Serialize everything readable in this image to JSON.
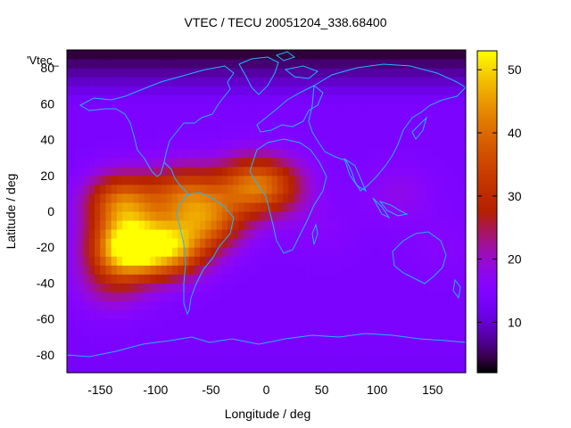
{
  "chart_data": {
    "type": "heatmap",
    "title": "VTEC / TECU 20051204_338.68400",
    "xlabel": "Longitude / deg",
    "ylabel": "Latitude / deg",
    "legend_entry": "'Vtec_",
    "xlim": [
      -180,
      180
    ],
    "ylim": [
      -90,
      90
    ],
    "x_ticks": [
      -150,
      -100,
      -50,
      0,
      50,
      100,
      150
    ],
    "y_ticks": [
      -80,
      -60,
      -40,
      -20,
      0,
      20,
      40,
      60,
      80
    ],
    "colorbar": {
      "range": [
        2,
        53
      ],
      "ticks": [
        10,
        20,
        30,
        40,
        50
      ]
    },
    "hotspots": [
      {
        "lon": -130,
        "lat": 5,
        "value": 40
      },
      {
        "lon": -125,
        "lat": -20,
        "value": 53
      },
      {
        "lon": -85,
        "lat": -20,
        "value": 42
      },
      {
        "lon": -75,
        "lat": 10,
        "value": 34
      },
      {
        "lon": -50,
        "lat": -5,
        "value": 34
      },
      {
        "lon": -20,
        "lat": 15,
        "value": 30
      },
      {
        "lon": 5,
        "lat": 14,
        "value": 30
      },
      {
        "lon": -140,
        "lat": -40,
        "value": 22
      },
      {
        "lon": 50,
        "lat": -10,
        "value": 16
      },
      {
        "lon": 120,
        "lat": 10,
        "value": 18
      },
      {
        "lon": 160,
        "lat": -20,
        "value": 16
      }
    ],
    "background_value": 14,
    "north_polar_value": 3,
    "south_polar_value": 13
  }
}
